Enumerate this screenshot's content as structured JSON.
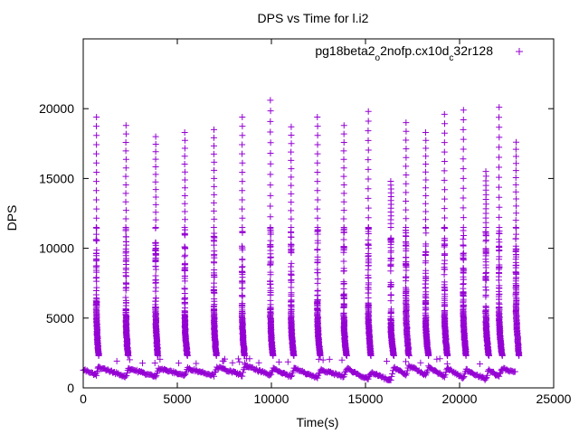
{
  "chart_data": {
    "type": "scatter",
    "title": "DPS vs Time for l.i2",
    "xlabel": "Time(s)",
    "ylabel": "DPS",
    "xlim": [
      0,
      25000
    ],
    "ylim": [
      0,
      25000
    ],
    "xticks": [
      0,
      5000,
      10000,
      15000,
      20000,
      25000
    ],
    "yticks": [
      0,
      5000,
      10000,
      15000,
      20000
    ],
    "legend_position": "top-right",
    "grid": false,
    "marker": "plus",
    "series": [
      {
        "name": "pg18beta2o2nofp.cx10dc32r128",
        "name_parts": [
          {
            "t": "pg18beta2",
            "sub": false
          },
          {
            "t": "o",
            "sub": true
          },
          {
            "t": "2nofp.cx10d",
            "sub": false
          },
          {
            "t": "c",
            "sub": true
          },
          {
            "t": "32r128",
            "sub": false
          }
        ],
        "color": "#9400d3",
        "bursts": [
          {
            "x": 700,
            "w": 120,
            "top": 19400,
            "dense_top": 5900
          },
          {
            "x": 2270,
            "w": 120,
            "top": 18800,
            "dense_top": 5400
          },
          {
            "x": 3850,
            "w": 120,
            "top": 18000,
            "dense_top": 5700
          },
          {
            "x": 5400,
            "w": 130,
            "top": 18300,
            "dense_top": 5400
          },
          {
            "x": 6950,
            "w": 130,
            "top": 18500,
            "dense_top": 5500
          },
          {
            "x": 8450,
            "w": 130,
            "top": 19400,
            "dense_top": 5300
          },
          {
            "x": 9950,
            "w": 130,
            "top": 20600,
            "dense_top": 5600
          },
          {
            "x": 11050,
            "w": 130,
            "top": 18700,
            "dense_top": 5300
          },
          {
            "x": 12450,
            "w": 140,
            "top": 19400,
            "dense_top": 5500
          },
          {
            "x": 13850,
            "w": 140,
            "top": 18800,
            "dense_top": 5300
          },
          {
            "x": 15150,
            "w": 140,
            "top": 19800,
            "dense_top": 5700
          },
          {
            "x": 16350,
            "w": 150,
            "top": 14800,
            "dense_top": 4800
          },
          {
            "x": 17150,
            "w": 150,
            "top": 19000,
            "dense_top": 6600
          },
          {
            "x": 18200,
            "w": 150,
            "top": 18300,
            "dense_top": 5200
          },
          {
            "x": 19200,
            "w": 150,
            "top": 19600,
            "dense_top": 5500
          },
          {
            "x": 20200,
            "w": 150,
            "top": 19900,
            "dense_top": 5800
          },
          {
            "x": 21400,
            "w": 150,
            "top": 15500,
            "dense_top": 5300
          },
          {
            "x": 22100,
            "w": 160,
            "top": 20100,
            "dense_top": 5700
          },
          {
            "x": 23000,
            "w": 160,
            "top": 17600,
            "dense_top": 6600
          }
        ],
        "baseline": [
          [
            0,
            1300
          ],
          [
            700,
            900
          ],
          [
            800,
            1500
          ],
          [
            2270,
            800
          ],
          [
            2400,
            1400
          ],
          [
            3850,
            800
          ],
          [
            4000,
            1400
          ],
          [
            5400,
            900
          ],
          [
            5550,
            1400
          ],
          [
            6950,
            900
          ],
          [
            7100,
            1500
          ],
          [
            8450,
            900
          ],
          [
            8600,
            1600
          ],
          [
            9950,
            900
          ],
          [
            10100,
            1400
          ],
          [
            11050,
            800
          ],
          [
            11200,
            1400
          ],
          [
            12450,
            700
          ],
          [
            12600,
            1300
          ],
          [
            13850,
            800
          ],
          [
            14000,
            1400
          ],
          [
            15150,
            600
          ],
          [
            15300,
            1100
          ],
          [
            16350,
            500
          ],
          [
            16500,
            1500
          ],
          [
            17150,
            900
          ],
          [
            17300,
            1600
          ],
          [
            18200,
            900
          ],
          [
            18350,
            1500
          ],
          [
            19200,
            800
          ],
          [
            19350,
            1400
          ],
          [
            20200,
            700
          ],
          [
            20350,
            1300
          ],
          [
            21400,
            600
          ],
          [
            21550,
            1300
          ],
          [
            22100,
            800
          ],
          [
            22250,
            1400
          ],
          [
            23000,
            1100
          ]
        ]
      }
    ]
  }
}
